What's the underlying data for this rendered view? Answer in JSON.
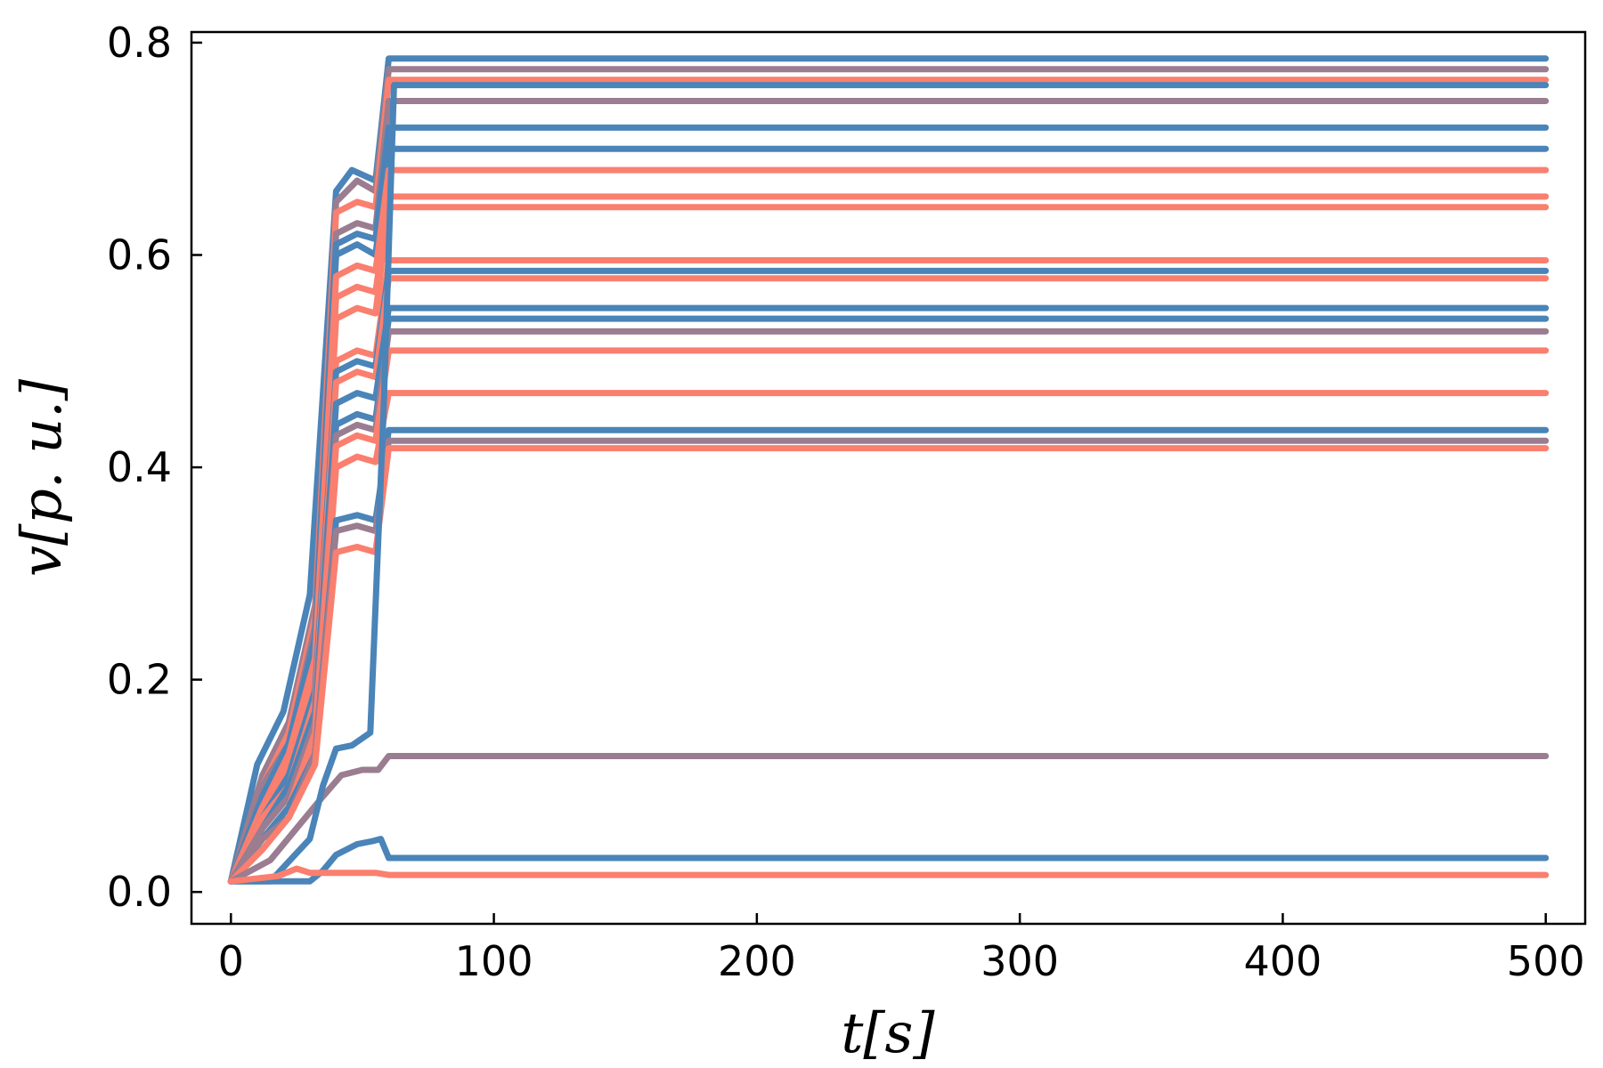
{
  "chart_data": {
    "type": "line",
    "title": "",
    "xlabel": "t[s]",
    "ylabel": "v[p. u.]",
    "xlim": [
      -15,
      515
    ],
    "ylim": [
      -0.03,
      0.81
    ],
    "xticks": [
      0,
      100,
      200,
      300,
      400,
      500
    ],
    "xtick_labels": [
      "0",
      "100",
      "200",
      "300",
      "400",
      "500"
    ],
    "yticks": [
      0.0,
      0.2,
      0.4,
      0.6,
      0.8
    ],
    "ytick_labels": [
      "0.0",
      "0.2",
      "0.4",
      "0.6",
      "0.8"
    ],
    "grid": false,
    "legend": "none",
    "colors": {
      "red": "#fa7f6f",
      "blue": "#4a84b8",
      "mauve": "#9a7d90",
      "axis": "#000000"
    },
    "series": [
      {
        "color": "#4a84b8",
        "x": [
          0,
          10,
          20,
          30,
          40,
          46,
          55,
          60,
          500
        ],
        "y": [
          0.01,
          0.12,
          0.17,
          0.28,
          0.66,
          0.68,
          0.67,
          0.785,
          0.785
        ]
      },
      {
        "color": "#9a7d90",
        "x": [
          0,
          12,
          22,
          32,
          40,
          48,
          55,
          60,
          500
        ],
        "y": [
          0.01,
          0.11,
          0.16,
          0.27,
          0.65,
          0.67,
          0.66,
          0.775,
          0.775
        ]
      },
      {
        "color": "#fa7f6f",
        "x": [
          0,
          12,
          22,
          32,
          40,
          48,
          55,
          60,
          500
        ],
        "y": [
          0.01,
          0.1,
          0.15,
          0.26,
          0.64,
          0.65,
          0.645,
          0.765,
          0.765
        ]
      },
      {
        "color": "#9a7d90",
        "x": [
          0,
          12,
          22,
          32,
          40,
          48,
          55,
          60,
          500
        ],
        "y": [
          0.01,
          0.1,
          0.14,
          0.25,
          0.62,
          0.63,
          0.625,
          0.745,
          0.745
        ]
      },
      {
        "color": "#4a84b8",
        "x": [
          0,
          12,
          22,
          32,
          40,
          48,
          55,
          60,
          500
        ],
        "y": [
          0.01,
          0.09,
          0.14,
          0.24,
          0.61,
          0.62,
          0.615,
          0.72,
          0.72
        ]
      },
      {
        "color": "#4a84b8",
        "x": [
          0,
          12,
          22,
          32,
          40,
          48,
          55,
          60,
          500
        ],
        "y": [
          0.01,
          0.09,
          0.13,
          0.23,
          0.6,
          0.61,
          0.6,
          0.7,
          0.7
        ]
      },
      {
        "color": "#fa7f6f",
        "x": [
          0,
          12,
          22,
          32,
          40,
          48,
          55,
          60,
          500
        ],
        "y": [
          0.01,
          0.08,
          0.13,
          0.22,
          0.58,
          0.59,
          0.585,
          0.68,
          0.68
        ]
      },
      {
        "color": "#fa7f6f",
        "x": [
          0,
          12,
          22,
          32,
          40,
          48,
          55,
          60,
          500
        ],
        "y": [
          0.01,
          0.08,
          0.12,
          0.21,
          0.56,
          0.57,
          0.565,
          0.655,
          0.655
        ]
      },
      {
        "color": "#fa7f6f",
        "x": [
          0,
          12,
          22,
          32,
          40,
          48,
          55,
          60,
          500
        ],
        "y": [
          0.01,
          0.08,
          0.12,
          0.2,
          0.54,
          0.55,
          0.545,
          0.645,
          0.645
        ]
      },
      {
        "color": "#fa7f6f",
        "x": [
          0,
          12,
          22,
          32,
          40,
          48,
          55,
          60,
          500
        ],
        "y": [
          0.01,
          0.07,
          0.11,
          0.19,
          0.5,
          0.51,
          0.505,
          0.595,
          0.595
        ]
      },
      {
        "color": "#4a84b8",
        "x": [
          0,
          12,
          22,
          32,
          40,
          48,
          55,
          60,
          500
        ],
        "y": [
          0.01,
          0.07,
          0.11,
          0.19,
          0.49,
          0.5,
          0.495,
          0.585,
          0.585
        ]
      },
      {
        "color": "#fa7f6f",
        "x": [
          0,
          12,
          22,
          32,
          40,
          48,
          55,
          60,
          500
        ],
        "y": [
          0.01,
          0.07,
          0.1,
          0.18,
          0.48,
          0.49,
          0.485,
          0.578,
          0.578
        ]
      },
      {
        "color": "#4a84b8",
        "x": [
          0,
          12,
          22,
          32,
          40,
          48,
          55,
          60,
          500
        ],
        "y": [
          0.01,
          0.06,
          0.1,
          0.17,
          0.46,
          0.47,
          0.465,
          0.55,
          0.55
        ]
      },
      {
        "color": "#4a84b8",
        "x": [
          0,
          12,
          22,
          32,
          40,
          48,
          55,
          60,
          500
        ],
        "y": [
          0.01,
          0.06,
          0.09,
          0.16,
          0.44,
          0.45,
          0.445,
          0.54,
          0.54
        ]
      },
      {
        "color": "#9a7d90",
        "x": [
          0,
          12,
          22,
          32,
          40,
          48,
          55,
          60,
          500
        ],
        "y": [
          0.01,
          0.06,
          0.09,
          0.16,
          0.43,
          0.44,
          0.435,
          0.528,
          0.528
        ]
      },
      {
        "color": "#fa7f6f",
        "x": [
          0,
          12,
          22,
          32,
          40,
          48,
          55,
          60,
          500
        ],
        "y": [
          0.01,
          0.05,
          0.08,
          0.15,
          0.42,
          0.43,
          0.425,
          0.51,
          0.51
        ]
      },
      {
        "color": "#fa7f6f",
        "x": [
          0,
          12,
          22,
          32,
          40,
          48,
          55,
          60,
          500
        ],
        "y": [
          0.01,
          0.05,
          0.08,
          0.14,
          0.4,
          0.41,
          0.405,
          0.47,
          0.47
        ]
      },
      {
        "color": "#4a84b8",
        "x": [
          0,
          12,
          22,
          32,
          40,
          48,
          55,
          60,
          500
        ],
        "y": [
          0.01,
          0.05,
          0.08,
          0.13,
          0.35,
          0.355,
          0.35,
          0.435,
          0.435
        ]
      },
      {
        "color": "#9a7d90",
        "x": [
          0,
          12,
          22,
          32,
          40,
          48,
          55,
          60,
          500
        ],
        "y": [
          0.01,
          0.05,
          0.07,
          0.13,
          0.34,
          0.345,
          0.34,
          0.425,
          0.425
        ]
      },
      {
        "color": "#fa7f6f",
        "x": [
          0,
          12,
          22,
          32,
          40,
          48,
          55,
          60,
          500
        ],
        "y": [
          0.01,
          0.04,
          0.07,
          0.12,
          0.32,
          0.325,
          0.32,
          0.418,
          0.418
        ]
      },
      {
        "color": "#9a7d90",
        "x": [
          0,
          15,
          25,
          35,
          42,
          50,
          56,
          60,
          500
        ],
        "y": [
          0.01,
          0.03,
          0.06,
          0.09,
          0.11,
          0.115,
          0.115,
          0.128,
          0.128
        ]
      },
      {
        "color": "#4a84b8",
        "x": [
          0,
          15,
          30,
          35,
          40,
          46,
          53,
          58,
          62,
          500
        ],
        "y": [
          0.01,
          0.01,
          0.05,
          0.1,
          0.135,
          0.138,
          0.15,
          0.45,
          0.76,
          0.76
        ]
      },
      {
        "color": "#4a84b8",
        "x": [
          0,
          20,
          30,
          35,
          40,
          48,
          54,
          57,
          60,
          500
        ],
        "y": [
          0.01,
          0.01,
          0.01,
          0.02,
          0.035,
          0.045,
          0.048,
          0.05,
          0.032,
          0.032
        ]
      },
      {
        "color": "#fa7f6f",
        "x": [
          0,
          18,
          25,
          30,
          40,
          55,
          60,
          500
        ],
        "y": [
          0.01,
          0.015,
          0.022,
          0.018,
          0.018,
          0.018,
          0.016,
          0.016
        ]
      }
    ]
  }
}
